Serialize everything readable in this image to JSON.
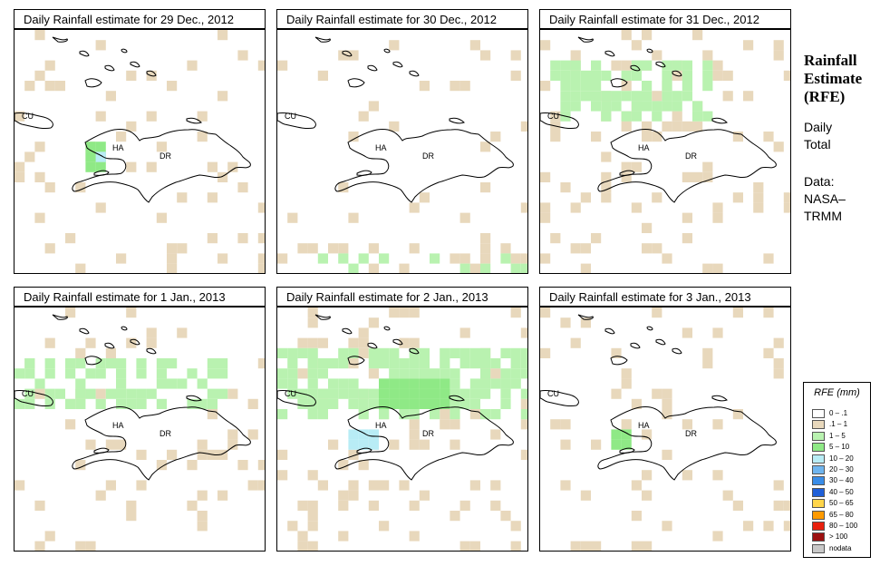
{
  "colors": {
    "light_tan": "#e8d8bc",
    "light_green": "#b9f2b0",
    "green": "#8fe986",
    "light_blue": "#b8ecf5",
    "coast": "#000000"
  },
  "panels": [
    {
      "title": "Daily Rainfall estimate for  29 Dec., 2012"
    },
    {
      "title": "Daily Rainfall estimate for  30 Dec., 2012"
    },
    {
      "title": "Daily Rainfall estimate for  31 Dec., 2012"
    },
    {
      "title": "Daily Rainfall estimate for  1 Jan., 2013"
    },
    {
      "title": "Daily Rainfall estimate for  2 Jan., 2013"
    },
    {
      "title": "Daily Rainfall estimate for  3 Jan., 2013"
    }
  ],
  "map_labels": {
    "cu": "CU",
    "ha": "HA",
    "dr": "DR"
  },
  "side": {
    "title_line1": "Rainfall",
    "title_line2": "Estimate",
    "title_line3": "(RFE)",
    "daily": "Daily",
    "total": "Total",
    "data": "Data:",
    "nasa": "NASA–",
    "trmm": "TRMM"
  },
  "legend": {
    "title": "RFE (mm)",
    "items": [
      {
        "label": "0 – .1",
        "color": "#ffffff"
      },
      {
        "label": ".1 – 1",
        "color": "#e8d8bc"
      },
      {
        "label": "1 – 5",
        "color": "#b9f2b0"
      },
      {
        "label": "5 – 10",
        "color": "#8fe986"
      },
      {
        "label": "10 – 20",
        "color": "#b8ecf5"
      },
      {
        "label": "20 – 30",
        "color": "#6fb5ef"
      },
      {
        "label": "30 – 40",
        "color": "#3a8de8"
      },
      {
        "label": "40 – 50",
        "color": "#1f5fd8"
      },
      {
        "label": "50 – 65",
        "color": "#ffd54a"
      },
      {
        "label": "65 – 80",
        "color": "#ff9a00"
      },
      {
        "label": "80 – 100",
        "color": "#e8200d"
      },
      {
        "label": "> 100",
        "color": "#9c1010"
      },
      {
        "label": "nodata",
        "color": "#c8c8c8"
      }
    ]
  }
}
